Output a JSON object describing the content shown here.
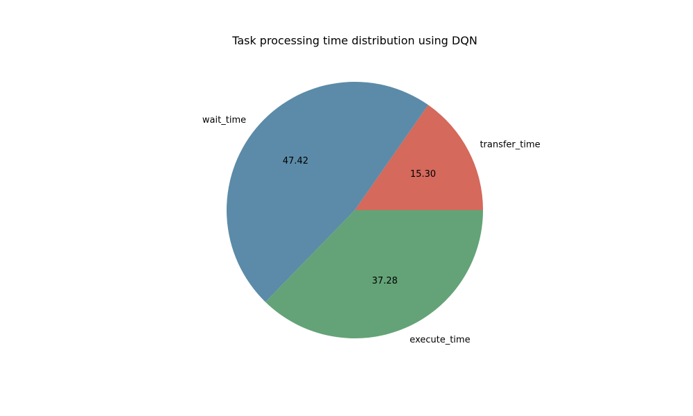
{
  "chart_data": {
    "type": "pie",
    "title": "Task processing time distribution using DQN",
    "labels": [
      "transfer_time",
      "wait_time",
      "execute_time"
    ],
    "values": [
      15.3,
      47.42,
      37.28
    ],
    "value_labels": [
      "15.30",
      "47.42",
      "37.28"
    ],
    "colors": [
      "#d4695c",
      "#5b8ba8",
      "#64a377"
    ],
    "start_angle_deg": 0,
    "direction": "counterclockwise",
    "legend": "none"
  }
}
